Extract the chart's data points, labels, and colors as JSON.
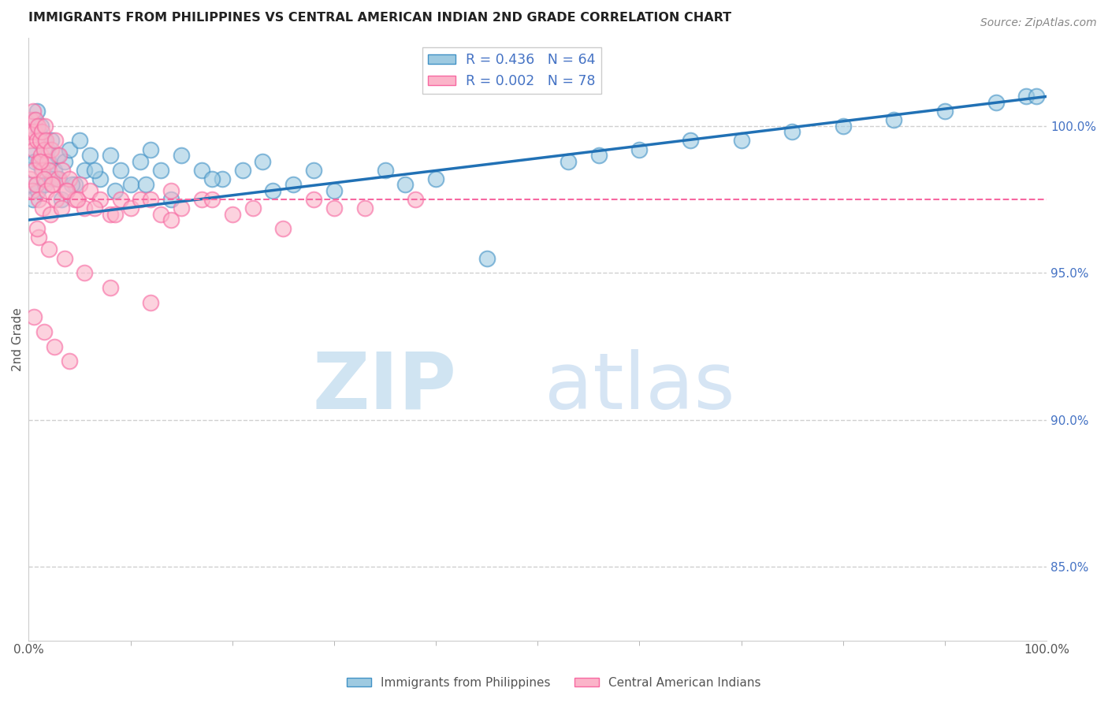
{
  "title": "IMMIGRANTS FROM PHILIPPINES VS CENTRAL AMERICAN INDIAN 2ND GRADE CORRELATION CHART",
  "source": "Source: ZipAtlas.com",
  "ylabel": "2nd Grade",
  "ylabel_right_ticks": [
    85.0,
    90.0,
    95.0,
    100.0
  ],
  "ylabel_right_labels": [
    "85.0%",
    "90.0%",
    "95.0%",
    "100.0%"
  ],
  "xmin": 0.0,
  "xmax": 100.0,
  "ymin": 82.5,
  "ymax": 103.0,
  "blue_R": 0.436,
  "blue_N": 64,
  "pink_R": 0.002,
  "pink_N": 78,
  "blue_color": "#9ecae1",
  "pink_color": "#fbb4c9",
  "blue_edge_color": "#4292c6",
  "pink_edge_color": "#f768a1",
  "blue_line_color": "#2171b5",
  "pink_line_color": "#f768a1",
  "legend_label_blue": "Immigrants from Philippines",
  "legend_label_pink": "Central American Indians",
  "blue_trend_start_y": 96.8,
  "blue_trend_end_y": 101.0,
  "pink_trend_y": 97.5,
  "blue_scatter_x": [
    0.3,
    0.5,
    0.8,
    1.0,
    1.2,
    1.5,
    1.8,
    2.0,
    2.2,
    2.5,
    2.8,
    3.0,
    3.5,
    4.0,
    4.5,
    5.0,
    5.5,
    6.0,
    7.0,
    8.0,
    9.0,
    10.0,
    11.0,
    12.0,
    13.0,
    15.0,
    17.0,
    19.0,
    21.0,
    23.0,
    26.0,
    30.0,
    35.0,
    40.0,
    0.2,
    0.4,
    0.6,
    0.9,
    1.3,
    1.6,
    2.3,
    3.2,
    4.2,
    6.5,
    8.5,
    11.5,
    14.0,
    18.0,
    24.0,
    28.0,
    53.0,
    56.0,
    60.0,
    65.0,
    70.0,
    75.0,
    80.0,
    85.0,
    90.0,
    95.0,
    98.0,
    99.0,
    37.0,
    45.0
  ],
  "blue_scatter_y": [
    99.0,
    100.2,
    100.5,
    99.8,
    100.0,
    99.5,
    99.2,
    98.8,
    99.5,
    98.5,
    99.0,
    98.2,
    98.8,
    99.2,
    98.0,
    99.5,
    98.5,
    99.0,
    98.2,
    99.0,
    98.5,
    98.0,
    98.8,
    99.2,
    98.5,
    99.0,
    98.5,
    98.2,
    98.5,
    98.8,
    98.0,
    97.8,
    98.5,
    98.2,
    98.0,
    97.5,
    98.8,
    97.8,
    98.5,
    98.0,
    98.2,
    97.5,
    98.0,
    98.5,
    97.8,
    98.0,
    97.5,
    98.2,
    97.8,
    98.5,
    98.8,
    99.0,
    99.2,
    99.5,
    99.5,
    99.8,
    100.0,
    100.2,
    100.5,
    100.8,
    101.0,
    101.0,
    98.0,
    95.5
  ],
  "pink_scatter_x": [
    0.1,
    0.2,
    0.3,
    0.4,
    0.5,
    0.6,
    0.7,
    0.8,
    0.9,
    1.0,
    1.1,
    1.2,
    1.3,
    1.4,
    1.5,
    1.6,
    1.7,
    1.8,
    2.0,
    2.2,
    2.4,
    2.6,
    2.8,
    3.0,
    3.3,
    3.6,
    4.0,
    4.5,
    5.0,
    5.5,
    6.0,
    7.0,
    8.0,
    9.0,
    10.0,
    11.0,
    13.0,
    15.0,
    17.0,
    0.15,
    0.35,
    0.55,
    0.75,
    0.95,
    1.15,
    1.35,
    1.55,
    1.75,
    2.1,
    2.3,
    2.7,
    3.2,
    3.8,
    4.8,
    6.5,
    8.5,
    12.0,
    14.0,
    18.0,
    22.0,
    28.0,
    33.0,
    38.0,
    1.0,
    2.0,
    3.5,
    5.5,
    8.0,
    12.0,
    0.5,
    1.5,
    2.5,
    4.0,
    0.8,
    14.0,
    20.0,
    25.0,
    30.0
  ],
  "pink_scatter_y": [
    99.5,
    100.2,
    99.8,
    100.5,
    99.2,
    99.8,
    100.2,
    99.5,
    100.0,
    98.8,
    99.5,
    99.0,
    99.8,
    98.5,
    99.2,
    100.0,
    99.5,
    98.8,
    98.5,
    99.2,
    98.0,
    99.5,
    98.2,
    99.0,
    98.5,
    97.8,
    98.2,
    97.5,
    98.0,
    97.2,
    97.8,
    97.5,
    97.0,
    97.5,
    97.2,
    97.5,
    97.0,
    97.2,
    97.5,
    98.2,
    97.8,
    98.5,
    98.0,
    97.5,
    98.8,
    97.2,
    98.2,
    97.8,
    97.0,
    98.0,
    97.5,
    97.2,
    97.8,
    97.5,
    97.2,
    97.0,
    97.5,
    97.8,
    97.5,
    97.2,
    97.5,
    97.2,
    97.5,
    96.2,
    95.8,
    95.5,
    95.0,
    94.5,
    94.0,
    93.5,
    93.0,
    92.5,
    92.0,
    96.5,
    96.8,
    97.0,
    96.5,
    97.2
  ]
}
